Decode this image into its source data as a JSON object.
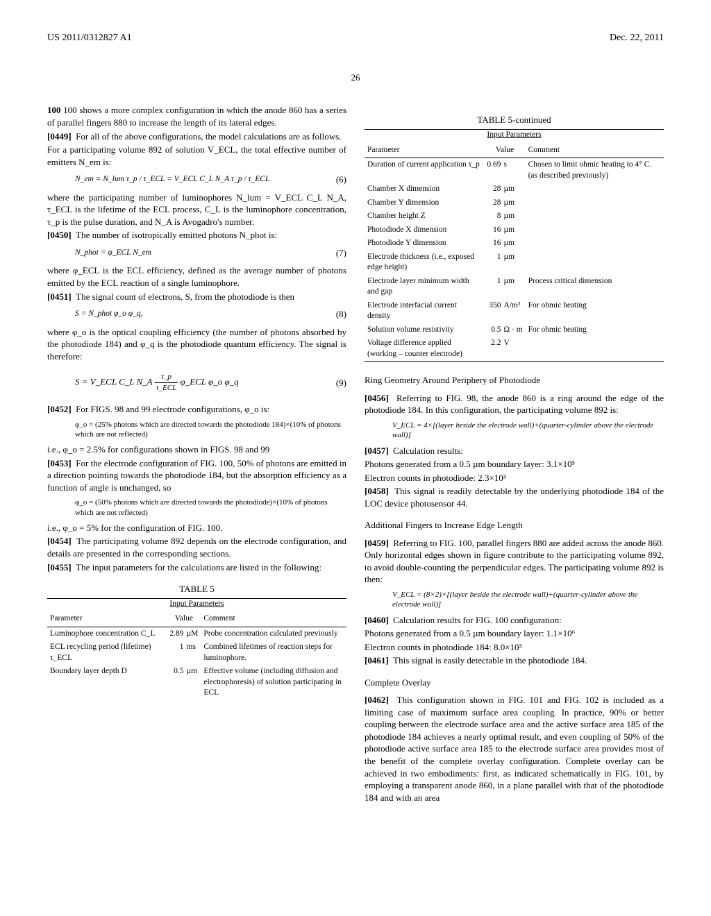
{
  "header": {
    "left": "US 2011/0312827 A1",
    "right": "Dec. 22, 2011"
  },
  "page_num": "26",
  "left_col": {
    "p1": "100 shows a more complex configuration in which the anode 860 has a series of parallel fingers 880 to increase the length of its lateral edges.",
    "p2_num": "[0449]",
    "p2": "For all of the above configurations, the model calculations are as follows.",
    "p3": "For a participating volume 892 of solution V_ECL, the total effective number of emitters N_em is:",
    "eq6": "N_em = N_lum τ_p / τ_ECL = V_ECL C_L N_A τ_p / τ_ECL",
    "eq6n": "(6)",
    "p4": "where the participating number of luminophores N_lum = V_ECL C_L N_A, τ_ECL is the lifetime of the ECL process, C_L is the luminophore concentration, τ_p is the pulse duration, and N_A is Avogadro's number.",
    "p5_num": "[0450]",
    "p5": "The number of isotropically emitted photons N_phot is:",
    "eq7": "N_phot = φ_ECL N_em",
    "eq7n": "(7)",
    "p6": "where φ_ECL is the ECL efficiency, defined as the average number of photons emitted by the ECL reaction of a single luminophore.",
    "p7_num": "[0451]",
    "p7": "The signal count of electrons, S, from the photodiode is then",
    "eq8": "S = N_phot φ_o φ_q,",
    "eq8n": "(8)",
    "p8": "where φ_o is the optical coupling efficiency (the number of photons absorbed by the photodiode 184) and φ_q is the photodiode quantum efficiency. The signal is therefore:",
    "eq9_pre": "S = V_ECL C_L N_A",
    "eq9_num": "τ_p",
    "eq9_den": "τ_ECL",
    "eq9_post": "φ_ECL φ_o φ_q",
    "eq9n": "(9)",
    "p9_num": "[0452]",
    "p9": "For FIGS. 98 and 99 electrode configurations, φ_o is:",
    "blk1": "φ_o = (25% photons which are directed towards the photodiode 184)×(10% of photons which are not reflected)",
    "p10": "i.e., φ_o = 2.5% for configurations shown in FIGS. 98 and 99",
    "p11_num": "[0453]",
    "p11": "For the electrode configuration of FIG. 100, 50% of photons are emitted in a direction pointing towards the photodiode 184, but the absorption efficiency as a function of angle is unchanged, so",
    "blk2": "φ_o = (50% photons which are directed towards the photodiode)×(10% of photons which are not reflected)",
    "p12": "i.e., φ_o = 5% for the configuration of FIG. 100.",
    "p13_num": "[0454]",
    "p13": "The participating volume 892 depends on the electrode configuration, and details are presented in the corresponding sections.",
    "p14_num": "[0455]",
    "p14": "The input parameters for the calculations are listed in the following:",
    "t5_title": "TABLE 5",
    "t5_sub": "Input Parameters",
    "t5_h1": "Parameter",
    "t5_h2": "Value",
    "t5_h3": "Comment",
    "t5_rows": [
      {
        "p": "Luminophore concentration C_L",
        "v": "2.89",
        "u": "µM",
        "c": "Probe concentration calculated previously"
      },
      {
        "p": "ECL recycling period (lifetime) τ_ECL",
        "v": "1",
        "u": "ms",
        "c": "Combined lifetimes of reaction steps for luminophore."
      },
      {
        "p": "Boundary layer depth D",
        "v": "0.5",
        "u": "µm",
        "c": "Effective volume (including diffusion and electrophoresis) of solution participating in ECL"
      }
    ]
  },
  "right_col": {
    "t5c_title": "TABLE 5-continued",
    "t5c_sub": "Input Parameters",
    "t5c_h1": "Parameter",
    "t5c_h2": "Value",
    "t5c_h3": "Comment",
    "t5c_rows": [
      {
        "p": "Duration of current application τ_p",
        "v": "0.69",
        "u": "s",
        "c": "Chosen to limit ohmic heating to 4° C. (as described previously)"
      },
      {
        "p": "Chamber X dimension",
        "v": "28",
        "u": "µm",
        "c": ""
      },
      {
        "p": "Chamber Y dimension",
        "v": "28",
        "u": "µm",
        "c": ""
      },
      {
        "p": "Chamber height Z",
        "v": "8",
        "u": "µm",
        "c": ""
      },
      {
        "p": "Photodiode X dimension",
        "v": "16",
        "u": "µm",
        "c": ""
      },
      {
        "p": "Photodiode Y dimension",
        "v": "16",
        "u": "µm",
        "c": ""
      },
      {
        "p": "Electrode thickness (i.e., exposed edge height)",
        "v": "1",
        "u": "µm",
        "c": ""
      },
      {
        "p": "Electrode layer minimum width and gap",
        "v": "1",
        "u": "µm",
        "c": "Process critical dimension"
      },
      {
        "p": "Electrode interfacial current density",
        "v": "350",
        "u": "A/m²",
        "c": "For ohmic heating"
      },
      {
        "p": "Solution volume resistivity",
        "v": "0.5",
        "u": "Ω · m",
        "c": "For ohmic heating"
      },
      {
        "p": "Voltage difference applied (working – counter electrode)",
        "v": "2.2",
        "u": "V",
        "c": ""
      }
    ],
    "s1": "Ring Geometry Around Periphery of Photodiode",
    "p15_num": "[0456]",
    "p15": "Referring to FIG. 98, the anode 860 is a ring around the edge of the photodiode 184. In this configuration, the participating volume 892 is:",
    "blk3": "V_ECL = 4×[(layer beside the electrode wall)+(quarter-cylinder above the electrode wall)]",
    "p16_num": "[0457]",
    "p16": "Calculation results:",
    "p17": "Photons generated from a 0.5 µm boundary layer: 3.1×10⁵",
    "p18": "Electron counts in photodiode: 2.3×10³",
    "p19_num": "[0458]",
    "p19": "This signal is readily detectable by the underlying photodiode 184 of the LOC device photosensor 44.",
    "s2": "Additional Fingers to Increase Edge Length",
    "p20_num": "[0459]",
    "p20": "Referring to FIG. 100, parallel fingers 880 are added across the anode 860. Only horizontal edges shown in figure contribute to the participating volume 892, to avoid double-counting the perpendicular edges. The participating volume 892 is then:",
    "blk4": "V_ECL = (8×2)×[(layer beside the electrode wall)+(quarter-cylinder above the electrode wall)]",
    "p21_num": "[0460]",
    "p21": "Calculation results for FIG. 100 configuration:",
    "p22": "Photons generated from a 0.5 µm boundary layer: 1.1×10⁶",
    "p23": "Electron counts in photodiode 184: 8.0×10³",
    "p24_num": "[0461]",
    "p24": "This signal is easily detectable in the photodiode 184.",
    "s3": "Complete Overlay",
    "p25_num": "[0462]",
    "p25": "This configuration shown in FIG. 101 and FIG. 102 is included as a limiting case of maximum surface area coupling. In practice, 90% or better coupling between the electrode surface area and the active surface area 185 of the photodiode 184 achieves a nearly optimal result, and even coupling of 50% of the photodiode active surface area 185 to the electrode surface area provides most of the benefit of the complete overlay configuration. Complete overlay can be achieved in two embodiments: first, as indicated schematically in FIG. 101, by employing a transparent anode 860, in a plane parallel with that of the photodiode 184 and with an area"
  }
}
